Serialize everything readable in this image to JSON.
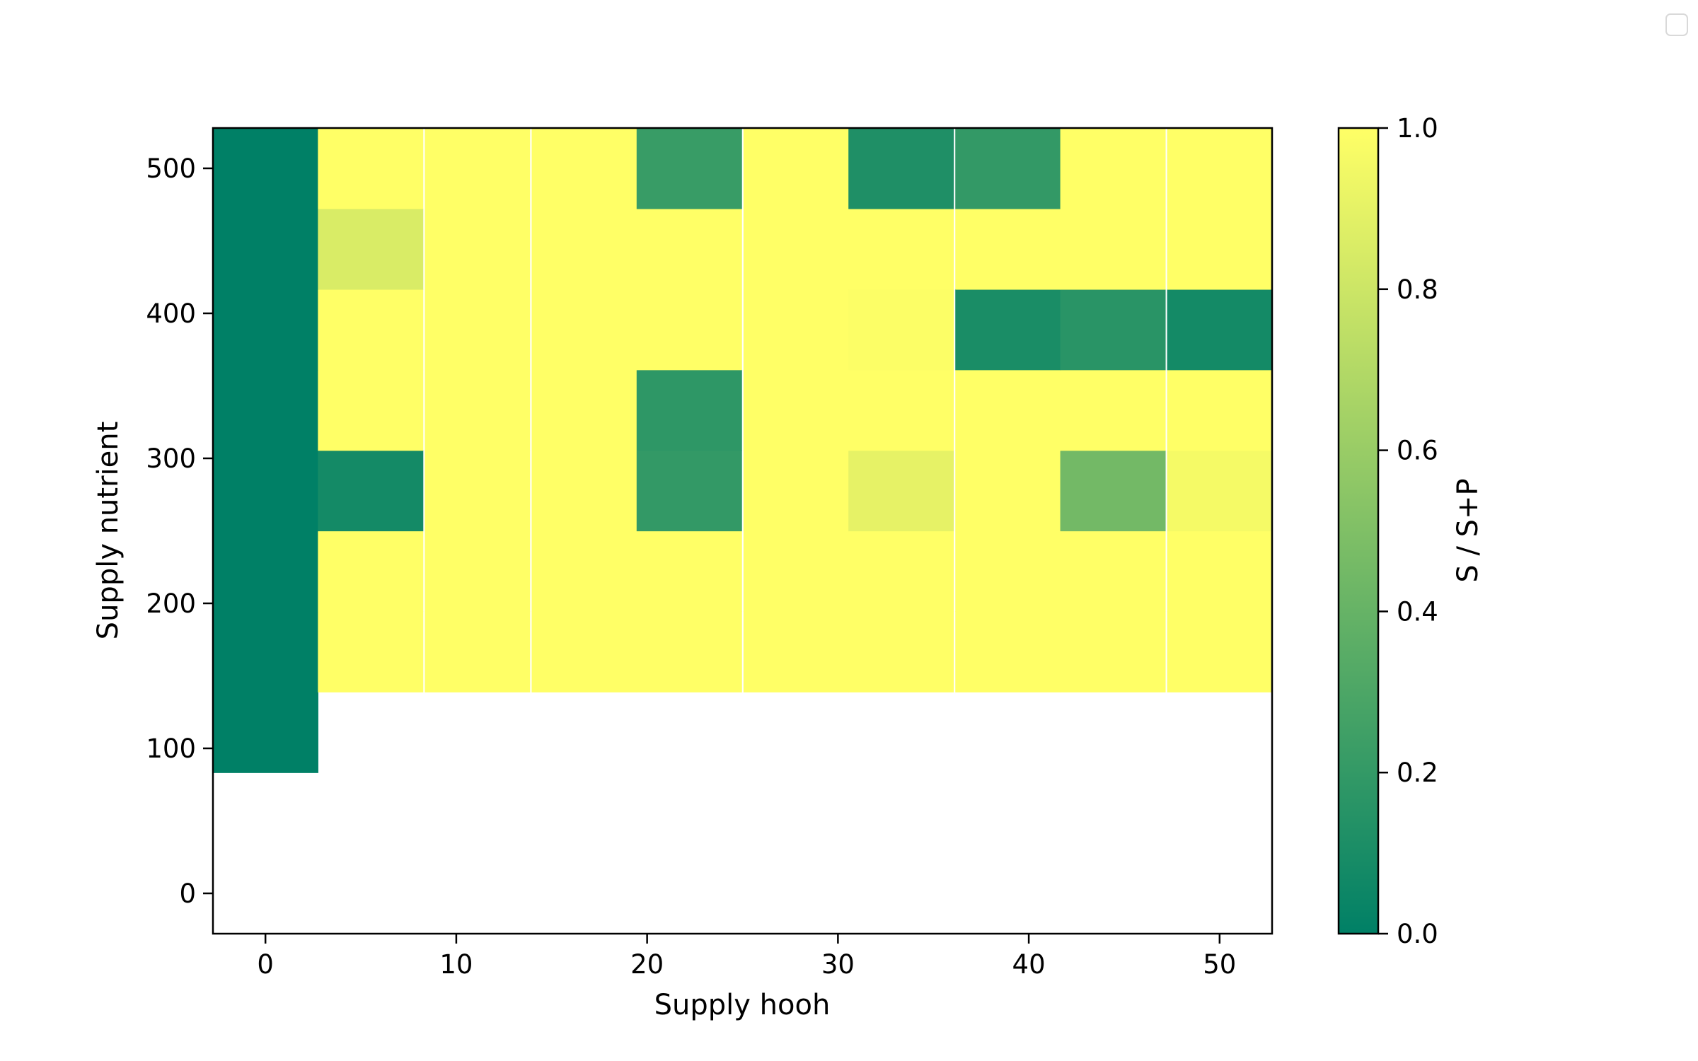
{
  "window": {
    "corner_checkbox_icon": "square-outline-icon"
  },
  "chart_data": {
    "type": "heatmap",
    "xlabel": "Supply hooh",
    "ylabel": "Supply nutrient",
    "x_ticks": [
      0,
      10,
      20,
      30,
      40,
      50
    ],
    "y_ticks": [
      0,
      100,
      200,
      300,
      400,
      500
    ],
    "xlim": [
      -2.75,
      52.75
    ],
    "ylim": [
      -27.8,
      527.8
    ],
    "x": [
      0,
      5.5,
      11.1,
      16.7,
      22.2,
      27.8,
      33.3,
      38.9,
      44.4,
      50
    ],
    "y": [
      0,
      55.6,
      111.1,
      166.7,
      222.2,
      277.8,
      333.3,
      388.9,
      444.4,
      500
    ],
    "values": [
      [
        null,
        null,
        null,
        null,
        null,
        null,
        null,
        null,
        null,
        null
      ],
      [
        null,
        null,
        null,
        null,
        null,
        null,
        null,
        null,
        null,
        null
      ],
      [
        0.0,
        null,
        null,
        null,
        null,
        null,
        null,
        null,
        null,
        null
      ],
      [
        0.0,
        1.0,
        1.0,
        1.0,
        1.0,
        1.0,
        1.0,
        1.0,
        1.0,
        1.0
      ],
      [
        0.0,
        1.0,
        1.0,
        1.0,
        1.0,
        1.0,
        1.0,
        1.0,
        1.0,
        1.0
      ],
      [
        0.0,
        0.08,
        1.0,
        1.0,
        0.2,
        1.0,
        0.9,
        1.0,
        0.45,
        0.96
      ],
      [
        0.0,
        1.0,
        1.0,
        1.0,
        0.18,
        1.0,
        1.0,
        1.0,
        1.0,
        1.0
      ],
      [
        0.0,
        1.0,
        1.0,
        1.0,
        1.0,
        1.0,
        0.99,
        0.1,
        0.16,
        0.08
      ],
      [
        0.0,
        0.85,
        1.0,
        1.0,
        1.0,
        1.0,
        1.0,
        1.0,
        1.0,
        1.0
      ],
      [
        0.0,
        1.0,
        1.0,
        1.0,
        0.22,
        1.0,
        0.12,
        0.2,
        1.0,
        1.0
      ]
    ],
    "colorbar": {
      "label": "S / S+P",
      "ticks": [
        0.0,
        0.2,
        0.4,
        0.6,
        0.8,
        1.0
      ],
      "tick_labels": [
        "0.0",
        "0.2",
        "0.4",
        "0.6",
        "0.8",
        "1.0"
      ],
      "range": [
        0.0,
        1.0
      ],
      "colormap": "summer",
      "color_low": "#008066",
      "color_high": "#ffff66"
    },
    "grid": false
  }
}
